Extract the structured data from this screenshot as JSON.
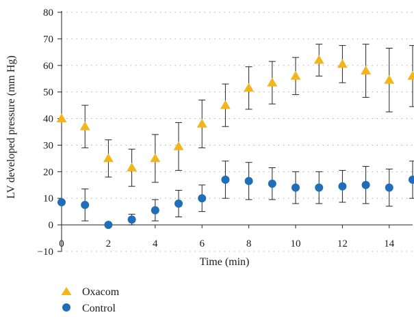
{
  "chart_data": {
    "type": "scatter",
    "xlabel": "Time (min)",
    "ylabel": "LV developed pressure (mm Hg)",
    "xlim": [
      0,
      15
    ],
    "ylim": [
      -10,
      80
    ],
    "x_ticks": [
      0,
      2,
      4,
      6,
      8,
      10,
      12,
      14
    ],
    "y_ticks": [
      -10,
      0,
      10,
      20,
      30,
      40,
      50,
      60,
      70,
      80
    ],
    "x_tick_labels": [
      "0",
      "2",
      "4",
      "6",
      "8",
      "10",
      "12",
      "14"
    ],
    "y_tick_labels": [
      "−10",
      "0",
      "10",
      "20",
      "30",
      "40",
      "50",
      "60",
      "70",
      "80"
    ],
    "grid": "dotted horizontal",
    "legend_position": "bottom-left",
    "series": [
      {
        "name": "Oxacom",
        "marker": "triangle",
        "color": "#f2b51c",
        "x": [
          0,
          1,
          2,
          3,
          4,
          5,
          6,
          7,
          8,
          9,
          10,
          11,
          12,
          13,
          14,
          15
        ],
        "y": [
          40,
          37,
          25,
          21.5,
          25,
          29.5,
          38,
          45,
          51.5,
          53.5,
          56,
          62,
          60.5,
          58,
          54.5,
          56
        ],
        "error": [
          null,
          8,
          7,
          7,
          9,
          9,
          9,
          8,
          8,
          8,
          7,
          6,
          7,
          10,
          12,
          11.5
        ]
      },
      {
        "name": "Control",
        "marker": "circle",
        "color": "#1f6fb8",
        "x": [
          0,
          1,
          2,
          3,
          4,
          5,
          6,
          7,
          8,
          9,
          10,
          11,
          12,
          13,
          14,
          15
        ],
        "y": [
          8.5,
          7.5,
          0,
          2,
          5.5,
          8,
          10,
          17,
          16.5,
          15.5,
          14,
          14,
          14.5,
          15,
          14,
          17
        ],
        "error": [
          null,
          6,
          null,
          2,
          4,
          5,
          5,
          7,
          7,
          6,
          6,
          6,
          6,
          7,
          7,
          7
        ]
      }
    ]
  }
}
